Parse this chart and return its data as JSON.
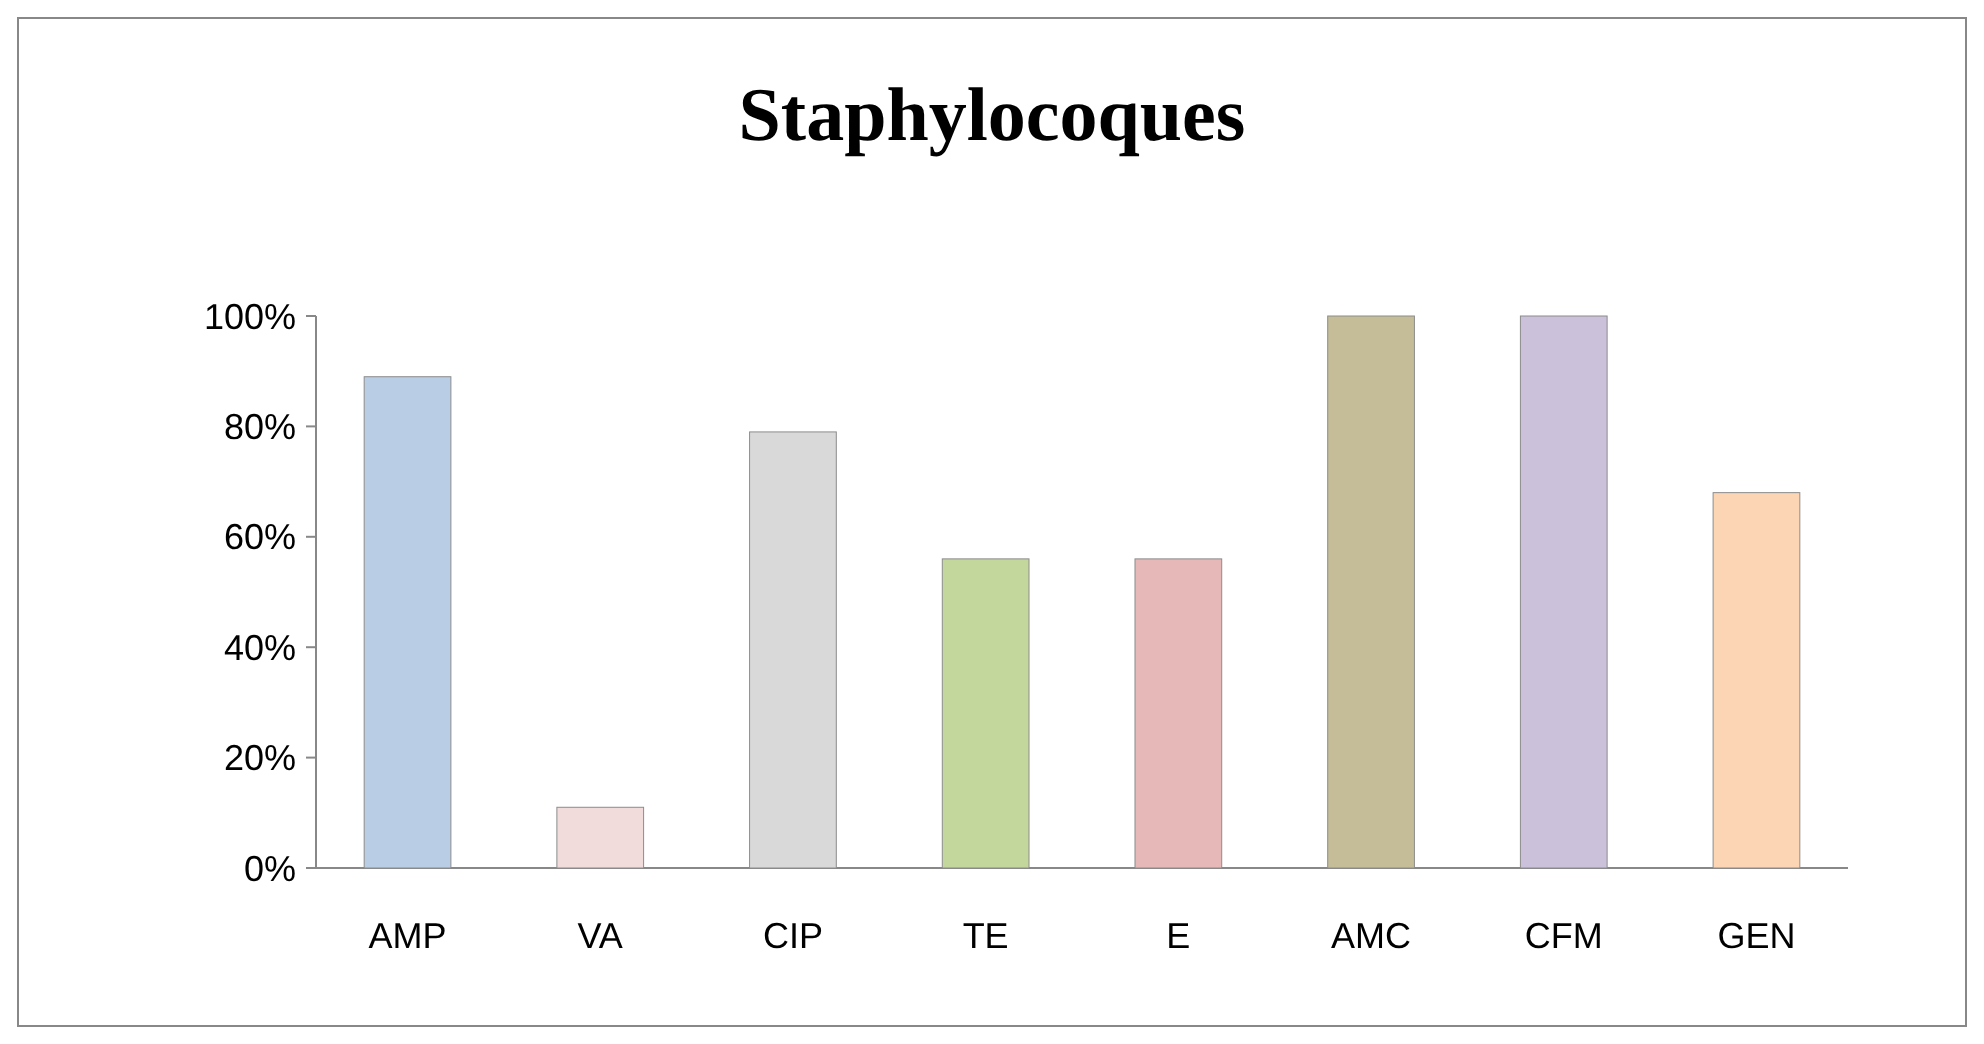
{
  "chart_data": {
    "type": "bar",
    "title": "Staphylocoques",
    "categories": [
      "AMP",
      "VA",
      "CIP",
      "TE",
      "E",
      "AMC",
      "CFM",
      "GEN"
    ],
    "values": [
      89,
      11,
      79,
      56,
      56,
      100,
      100,
      68
    ],
    "colors": [
      "#b9cde5",
      "#f2dcdb",
      "#d9d9d9",
      "#c3d69b",
      "#e6b9b8",
      "#c4bd97",
      "#ccc1da",
      "#fcd5b5"
    ],
    "ylim": [
      0,
      100
    ],
    "yticks": [
      {
        "value": 0,
        "label": "0%"
      },
      {
        "value": 20,
        "label": "20%"
      },
      {
        "value": 40,
        "label": "40%"
      },
      {
        "value": 60,
        "label": "60%"
      },
      {
        "value": 80,
        "label": "80%"
      },
      {
        "value": 100,
        "label": "100%"
      }
    ],
    "grid": false
  }
}
